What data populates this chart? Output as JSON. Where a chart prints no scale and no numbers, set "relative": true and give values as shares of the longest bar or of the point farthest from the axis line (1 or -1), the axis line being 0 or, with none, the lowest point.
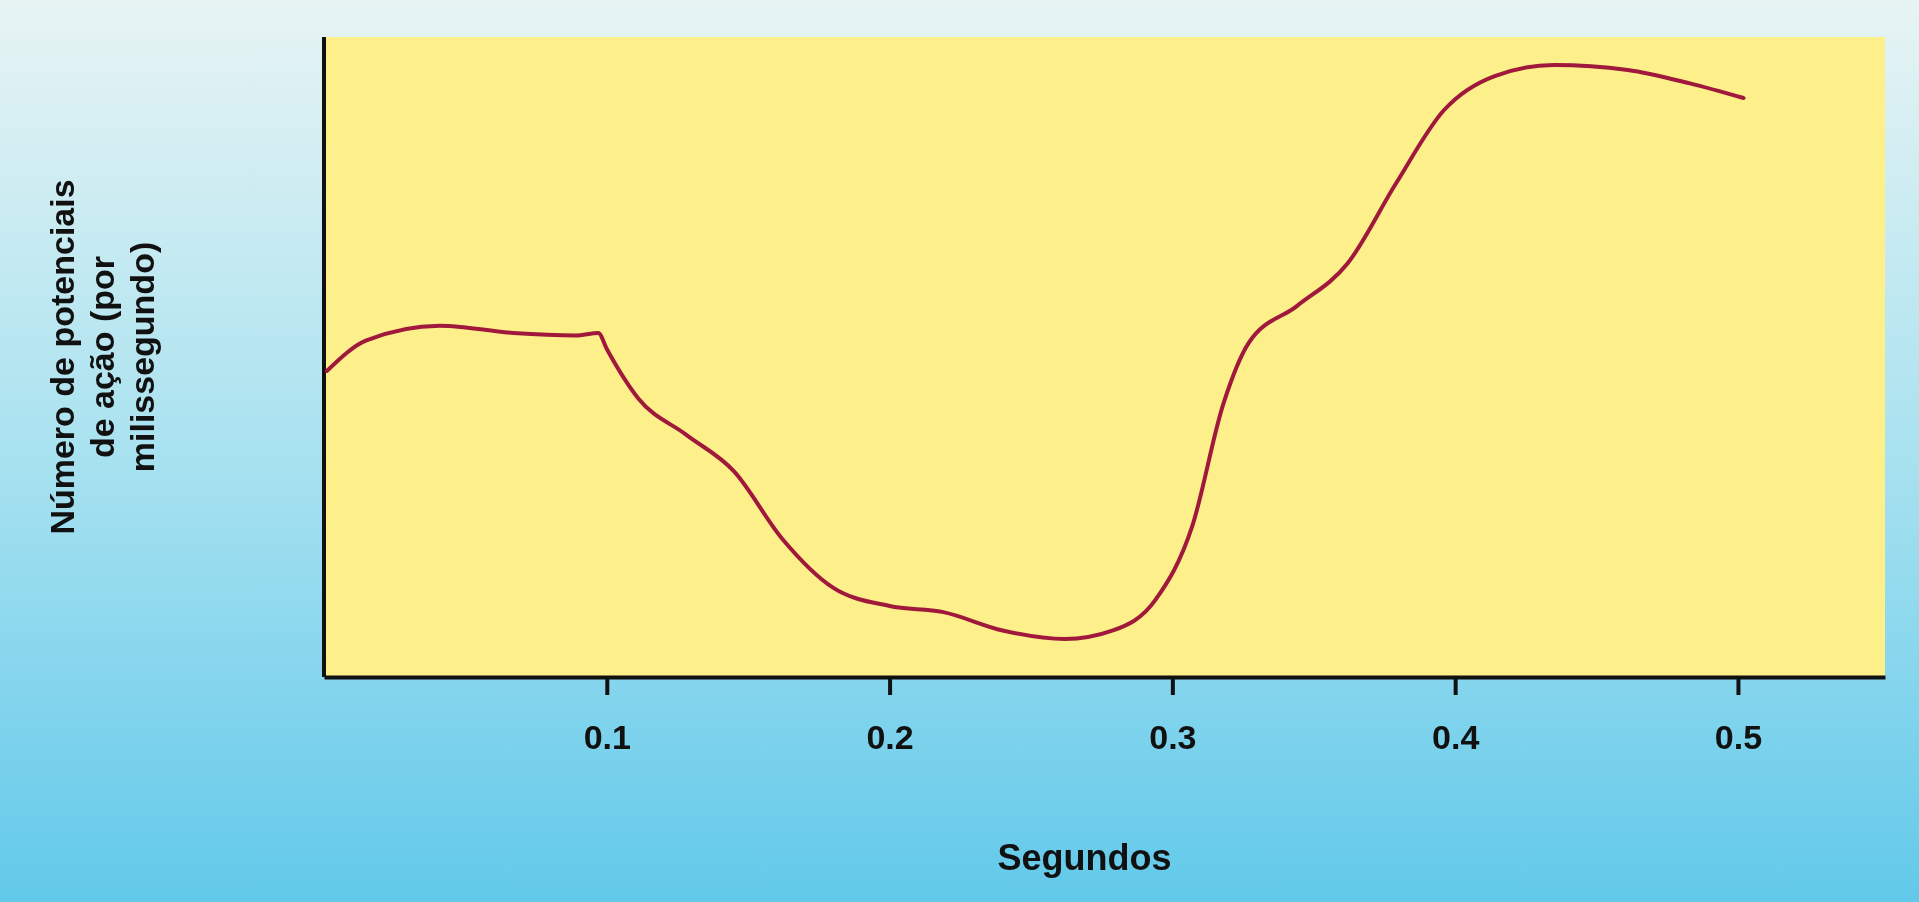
{
  "chart_data": {
    "type": "line",
    "relative": true,
    "xlabel": "Segundos",
    "ylabel": "Número de potenciais de ação (por milissegundo)",
    "xlim": [
      0,
      0.552
    ],
    "xticks": [
      0.1,
      0.2,
      0.3,
      0.4,
      0.5
    ],
    "x": [
      0.001,
      0.015,
      0.041,
      0.067,
      0.089,
      0.097,
      0.1,
      0.111,
      0.128,
      0.145,
      0.162,
      0.18,
      0.2,
      0.219,
      0.24,
      0.262,
      0.279,
      0.294,
      0.307,
      0.318,
      0.327,
      0.344,
      0.362,
      0.379,
      0.396,
      0.414,
      0.435,
      0.461,
      0.483,
      0.502
    ],
    "series": [
      {
        "color": "#a0183c",
        "values": [
          0.5,
          0.55,
          0.574,
          0.562,
          0.558,
          0.562,
          0.536,
          0.456,
          0.396,
          0.336,
          0.226,
          0.146,
          0.116,
          0.106,
          0.076,
          0.062,
          0.076,
          0.126,
          0.246,
          0.446,
          0.546,
          0.606,
          0.676,
          0.806,
          0.926,
          0.982,
          1.0,
          0.992,
          0.97,
          0.946
        ]
      }
    ],
    "grid": false,
    "marker": "none",
    "line_style": "solid"
  }
}
